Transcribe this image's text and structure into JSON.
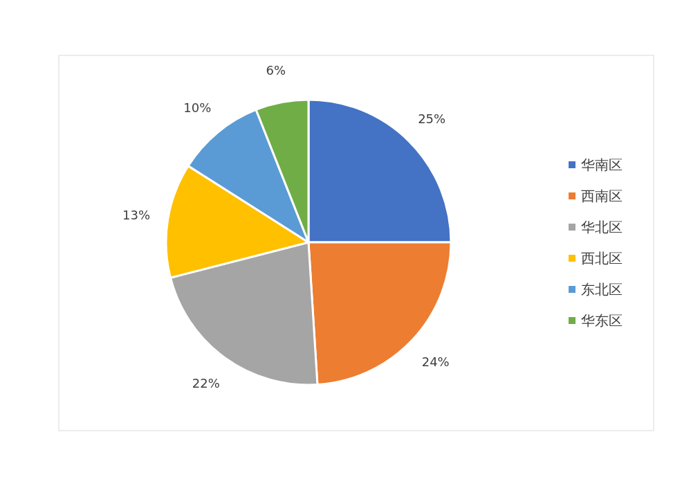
{
  "chart_data": {
    "type": "pie",
    "categories": [
      "华南区",
      "西南区",
      "华北区",
      "西北区",
      "东北区",
      "华东区"
    ],
    "values": [
      25,
      24,
      22,
      13,
      10,
      6
    ],
    "colors": [
      "#4472c4",
      "#ed7d31",
      "#a5a5a5",
      "#ffc000",
      "#5b9bd5",
      "#70ad47"
    ],
    "value_labels": [
      "25%",
      "24%",
      "22%",
      "13%",
      "10%",
      "6%"
    ],
    "legend": "right"
  }
}
